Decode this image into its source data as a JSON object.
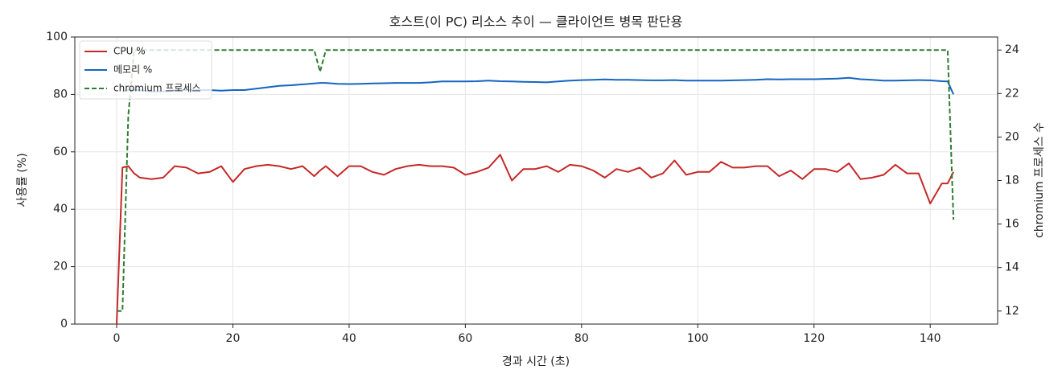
{
  "chart_data": {
    "type": "line",
    "title": "호스트(이 PC) 리소스 추이 — 클라이언트 병목 판단용",
    "xlabel": "경과 시간 (초)",
    "ylabel": "사용률 (%)",
    "y2label": "chromium 프로세스 수",
    "x": [
      0,
      1,
      2,
      3,
      4,
      6,
      8,
      10,
      12,
      14,
      16,
      18,
      20,
      22,
      24,
      26,
      28,
      30,
      32,
      34,
      35,
      36,
      38,
      40,
      42,
      44,
      46,
      48,
      50,
      52,
      54,
      56,
      58,
      60,
      62,
      64,
      66,
      68,
      70,
      72,
      74,
      76,
      78,
      80,
      82,
      84,
      86,
      88,
      90,
      92,
      94,
      96,
      98,
      100,
      102,
      104,
      106,
      108,
      110,
      112,
      114,
      116,
      118,
      120,
      122,
      124,
      126,
      128,
      130,
      132,
      134,
      136,
      138,
      140,
      142,
      143,
      144
    ],
    "series": [
      {
        "name": "CPU %",
        "color": "#c62828",
        "style": "solid",
        "axis": "y",
        "values": [
          0,
          54.5,
          55,
          52.5,
          51,
          50.5,
          51,
          55,
          54.5,
          52.5,
          53,
          55,
          49.5,
          54,
          55,
          55.5,
          55,
          54,
          55,
          51.5,
          53.5,
          55,
          51.5,
          55,
          55,
          53,
          52,
          54,
          55,
          55.5,
          55,
          55,
          54.5,
          52,
          53,
          54.5,
          59,
          50,
          54,
          54,
          55,
          53,
          55.5,
          55,
          53.5,
          51,
          54,
          53,
          54.5,
          51,
          52.5,
          57,
          52,
          53,
          53,
          56.5,
          54.5,
          54.5,
          55,
          55,
          51.5,
          53.5,
          50.5,
          54,
          54,
          53,
          56,
          50.5,
          51,
          52,
          55.5,
          52.5,
          52.5,
          42,
          49,
          49,
          53
        ]
      },
      {
        "name": "메모리 %",
        "color": "#1565c0",
        "style": "solid",
        "axis": "y",
        "values": [
          null,
          81,
          81.5,
          81.5,
          81.5,
          81,
          81,
          81.5,
          81.5,
          81.5,
          81.5,
          81.3,
          81.5,
          81.5,
          82,
          82.5,
          83,
          83.2,
          83.5,
          83.8,
          84,
          84,
          83.7,
          83.6,
          83.7,
          83.8,
          83.9,
          84,
          84,
          84,
          84.2,
          84.5,
          84.5,
          84.5,
          84.6,
          84.8,
          84.6,
          84.5,
          84.4,
          84.3,
          84.2,
          84.5,
          84.8,
          85,
          85.1,
          85.2,
          85.1,
          85.1,
          85,
          84.9,
          84.9,
          85,
          84.8,
          84.8,
          84.8,
          84.8,
          84.9,
          85,
          85.1,
          85.3,
          85.2,
          85.3,
          85.3,
          85.3,
          85.4,
          85.5,
          85.8,
          85.3,
          85.1,
          84.8,
          84.8,
          84.9,
          85,
          84.9,
          84.6,
          84.5,
          80
        ]
      },
      {
        "name": "chromium 프로세스",
        "color": "#2e7d32",
        "style": "dashed",
        "axis": "y2",
        "values": [
          12,
          12,
          21,
          24,
          24,
          24,
          24,
          24,
          24,
          24,
          24,
          24,
          24,
          24,
          24,
          24,
          24,
          24,
          24,
          24,
          23,
          24,
          24,
          24,
          24,
          24,
          24,
          24,
          24,
          24,
          24,
          24,
          24,
          24,
          24,
          24,
          24,
          24,
          24,
          24,
          24,
          24,
          24,
          24,
          24,
          24,
          24,
          24,
          24,
          24,
          24,
          24,
          24,
          24,
          24,
          24,
          24,
          24,
          24,
          24,
          24,
          24,
          24,
          24,
          24,
          24,
          24,
          24,
          24,
          24,
          24,
          24,
          24,
          24,
          24,
          24,
          16.2
        ]
      }
    ],
    "xlim": [
      -7.2,
      151.6
    ],
    "xticks": [
      0,
      20,
      40,
      60,
      80,
      100,
      120,
      140
    ],
    "ylim": [
      0,
      100
    ],
    "yticks": [
      0,
      20,
      40,
      60,
      80,
      100
    ],
    "y2lim": [
      11.4,
      24.6
    ],
    "y2ticks": [
      12,
      14,
      16,
      18,
      20,
      22,
      24
    ],
    "grid": true,
    "legend": "upper left"
  }
}
